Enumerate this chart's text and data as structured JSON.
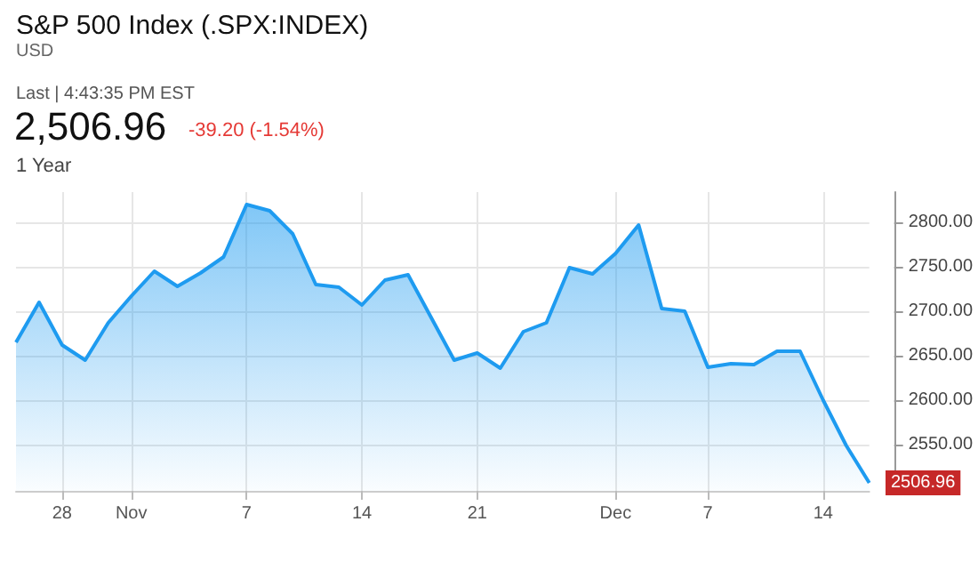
{
  "chart_data": {
    "type": "area",
    "title": "S&P 500 Index (.SPX:INDEX)",
    "subtitle": "USD",
    "annotations": [
      "Last | 4:43:35 PM EST",
      "2,506.96",
      "-39.20 (-1.54%)",
      "1 Year",
      "2506.96"
    ],
    "categories": [
      null,
      null,
      "28",
      null,
      null,
      "Nov",
      null,
      null,
      null,
      null,
      "7",
      null,
      null,
      null,
      null,
      "14",
      null,
      null,
      null,
      null,
      "21",
      null,
      null,
      null,
      null,
      null,
      "Dec",
      null,
      null,
      null,
      "7",
      null,
      null,
      null,
      null,
      "14",
      null,
      null
    ],
    "series": [
      {
        "color": "#1e9bf0",
        "values": [
          2665,
          2710,
          2662,
          2645,
          2687,
          2717,
          2745,
          2728,
          2743,
          2761,
          2820,
          2813,
          2787,
          2730,
          2727,
          2707,
          2735,
          2741,
          2693,
          2645,
          2653,
          2636,
          2677,
          2687,
          2749,
          2742,
          2765,
          2797,
          2703,
          2700,
          2637,
          2641,
          2640,
          2655,
          2655,
          2600,
          2549,
          2506.96
        ]
      }
    ],
    "ylim": [
      2498,
      2834
    ],
    "yticks": [
      {
        "value": 2550,
        "label": "2550.00"
      },
      {
        "value": 2600,
        "label": "2600.00"
      },
      {
        "value": 2650,
        "label": "2650.00"
      },
      {
        "value": 2700,
        "label": "2700.00"
      },
      {
        "value": 2750,
        "label": "2750.00"
      },
      {
        "value": 2800,
        "label": "2800.00"
      }
    ],
    "grid": true,
    "marker": "none",
    "line_style": "solid"
  }
}
